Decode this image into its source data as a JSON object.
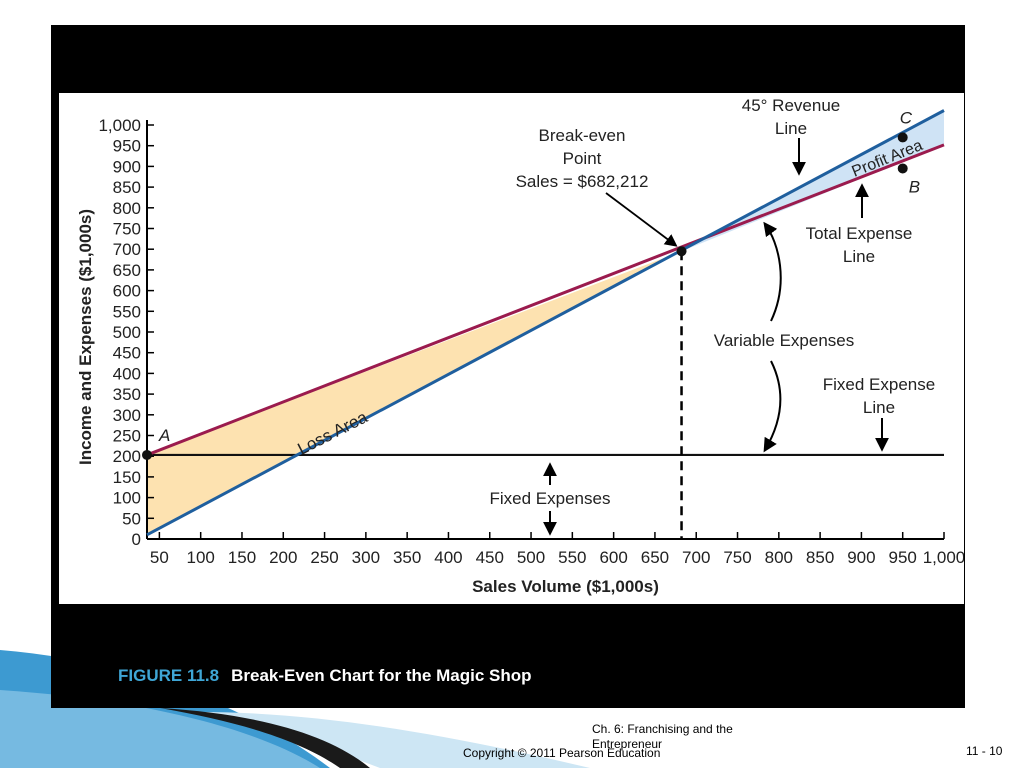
{
  "footer": {
    "chapter": "Ch. 6: Franchising and the Entrepreneur",
    "copyright": "Copyright © 2011 Pearson Education",
    "slide_number": "11 - 10"
  },
  "caption": {
    "figure_number": "FIGURE 11.8",
    "title": "Break-Even Chart for the Magic Shop"
  },
  "colors": {
    "revenue_line": "#1f5f9e",
    "expense_line": "#9b1b4e",
    "loss_fill": "#fde2b0",
    "profit_fill": "#cfe3f5",
    "accent": "#3fa6d6"
  },
  "chart_data": {
    "type": "line",
    "xlabel": "Sales Volume ($1,000s)",
    "ylabel": "Income and Expenses ($1,000s)",
    "xlim": [
      35,
      1000
    ],
    "ylim": [
      0,
      1000
    ],
    "x_ticks": [
      "50",
      "100",
      "150",
      "200",
      "250",
      "300",
      "350",
      "400",
      "450",
      "500",
      "550",
      "600",
      "650",
      "700",
      "750",
      "800",
      "850",
      "900",
      "950",
      "1,000"
    ],
    "y_ticks": [
      "0",
      "50",
      "100",
      "150",
      "200",
      "250",
      "300",
      "350",
      "400",
      "450",
      "500",
      "550",
      "600",
      "650",
      "700",
      "750",
      "800",
      "850",
      "900",
      "950",
      "1,000"
    ],
    "series": [
      {
        "name": "45° Revenue Line",
        "x": [
          35,
          1000
        ],
        "y": [
          10,
          1035
        ]
      },
      {
        "name": "Total Expense Line",
        "x": [
          35,
          1000
        ],
        "y": [
          203,
          952
        ]
      },
      {
        "name": "Fixed Expense Line",
        "x": [
          35,
          1000
        ],
        "y": [
          203,
          203
        ]
      }
    ],
    "break_even": {
      "x": 682.212,
      "y": 695
    },
    "points": [
      {
        "label": "A",
        "x": 35,
        "y": 203
      },
      {
        "label": "B",
        "x": 950,
        "y": 895
      },
      {
        "label": "C",
        "x": 950,
        "y": 970
      }
    ],
    "annotations": {
      "break_even": [
        "Break-even",
        "Point",
        "Sales = $682,212"
      ],
      "revenue_line": [
        "45° Revenue",
        "Line"
      ],
      "total_expense_line": [
        "Total Expense",
        "Line"
      ],
      "fixed_expense_line": [
        "Fixed Expense",
        "Line"
      ],
      "variable_expenses": "Variable Expenses",
      "fixed_expenses": "Fixed Expenses",
      "loss_area": "Loss Area",
      "profit_area": "Profit Area"
    }
  }
}
